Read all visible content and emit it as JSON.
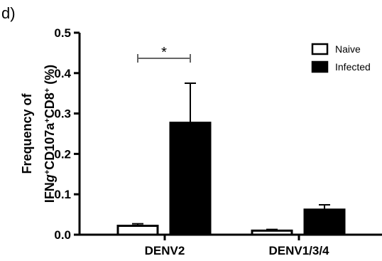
{
  "panel_label": "d)",
  "chart_data": {
    "type": "bar",
    "categories": [
      "DENV2",
      "DENV1/3/4"
    ],
    "series": [
      {
        "name": "Naive",
        "values": [
          0.022,
          0.01
        ],
        "errors": [
          0.005,
          0.003
        ],
        "fill": "#ffffff",
        "stroke": "#000000"
      },
      {
        "name": "Infected",
        "values": [
          0.277,
          0.062
        ],
        "errors": [
          0.098,
          0.012
        ],
        "fill": "#000000",
        "stroke": "#000000"
      }
    ],
    "ylabel_line1": "Frequency of",
    "ylabel_line2": {
      "a": "IFN",
      "b": "g",
      "c": "+",
      "d": "CD107a",
      "e": "+",
      "f": "CD8",
      "g": "+",
      "h": " (%)"
    },
    "ylim": [
      0,
      0.5
    ],
    "yticks": [
      "0.0",
      "0.1",
      "0.2",
      "0.3",
      "0.4",
      "0.5"
    ],
    "legend_position": "top-right",
    "significance": {
      "category": "DENV2",
      "label": "*"
    },
    "grid": false
  }
}
